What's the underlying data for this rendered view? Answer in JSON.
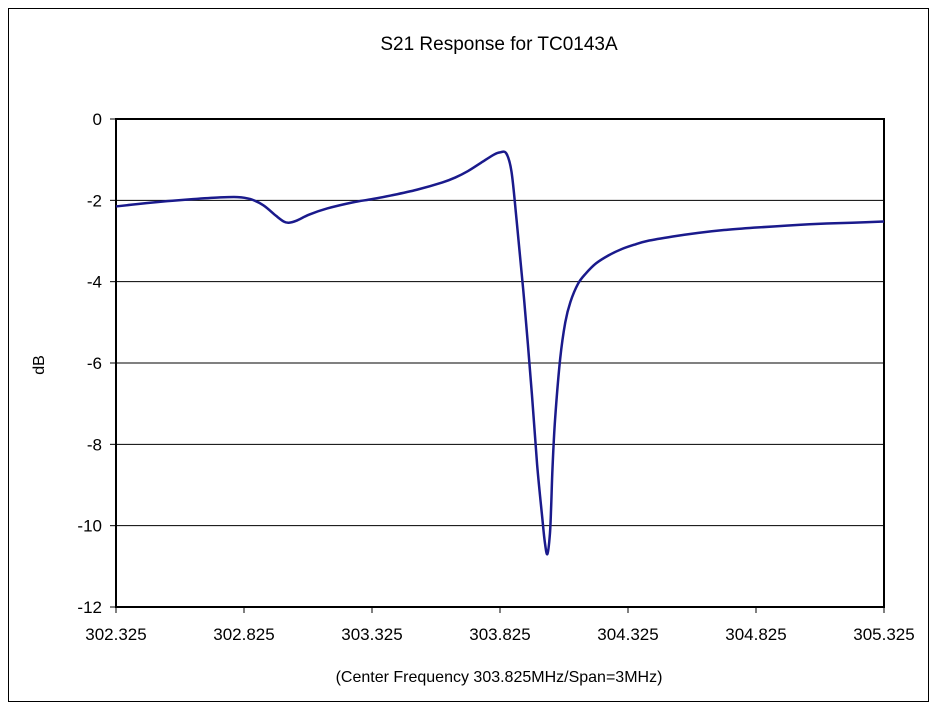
{
  "chart_data": {
    "type": "line",
    "title": "S21 Response for TC0143A",
    "xlabel": "(Center Frequency 303.825MHz/Span=3MHz)",
    "ylabel": "dB",
    "xlim": [
      302.325,
      305.325
    ],
    "ylim": [
      -12,
      0
    ],
    "x_ticks": [
      "302.325",
      "302.825",
      "303.325",
      "303.825",
      "304.325",
      "304.825",
      "305.325"
    ],
    "y_ticks": [
      "0",
      "-2",
      "-4",
      "-6",
      "-8",
      "-10",
      "-12"
    ],
    "grid": "horizontal",
    "line_color": "#1a1a8c",
    "series": [
      {
        "x": [
          302.325,
          302.425,
          302.525,
          302.625,
          302.725,
          302.8,
          302.85,
          302.9,
          302.95,
          302.98,
          303.0,
          303.03,
          303.08,
          303.15,
          303.25,
          303.325,
          303.4,
          303.5,
          303.6,
          303.65,
          303.7,
          303.75,
          303.8,
          303.825,
          303.85,
          303.87,
          303.89,
          303.92,
          303.95,
          303.97,
          303.99,
          304.0,
          304.01,
          304.02,
          304.025,
          304.03,
          304.04,
          304.06,
          304.08,
          304.1,
          304.13,
          304.16,
          304.2,
          304.25,
          304.3,
          304.35,
          304.4,
          304.5,
          304.6,
          304.7,
          304.8,
          304.9,
          305.0,
          305.1,
          305.2,
          305.325
        ],
        "y": [
          -2.15,
          -2.08,
          -2.02,
          -1.97,
          -1.93,
          -1.92,
          -1.97,
          -2.12,
          -2.38,
          -2.52,
          -2.55,
          -2.5,
          -2.35,
          -2.2,
          -2.05,
          -1.97,
          -1.88,
          -1.74,
          -1.56,
          -1.44,
          -1.28,
          -1.08,
          -0.88,
          -0.82,
          -0.85,
          -1.3,
          -2.5,
          -4.5,
          -6.8,
          -8.5,
          -9.8,
          -10.4,
          -10.7,
          -10.2,
          -9.5,
          -8.6,
          -7.4,
          -5.9,
          -5.0,
          -4.5,
          -4.05,
          -3.8,
          -3.55,
          -3.35,
          -3.2,
          -3.09,
          -3.0,
          -2.89,
          -2.8,
          -2.73,
          -2.68,
          -2.64,
          -2.6,
          -2.57,
          -2.55,
          -2.52
        ]
      }
    ]
  }
}
